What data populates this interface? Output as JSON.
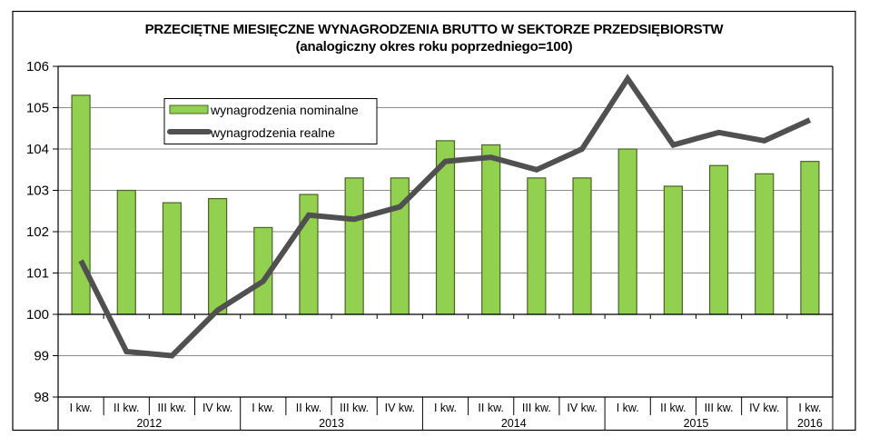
{
  "chart_data": {
    "type": "bar",
    "title": "PRZECIĘTNE MIESIĘCZNE WYNAGRODZENIA BRUTTO W SEKTORZE PRZEDSIĘBIORSTW",
    "subtitle": "(analogiczny okres  roku poprzedniego=100)",
    "xlabel": "",
    "ylabel": "",
    "ylim": [
      98,
      106
    ],
    "yticks": [
      98,
      99,
      100,
      101,
      102,
      103,
      104,
      105,
      106
    ],
    "bar_baseline": 100,
    "grid": true,
    "legend_position": "upper-left-inside",
    "categories": [
      "I kw.",
      "II kw.",
      "III kw.",
      "IV kw.",
      "I kw.",
      "II kw.",
      "III kw.",
      "IV kw.",
      "I kw.",
      "II kw.",
      "III kw.",
      "IV kw.",
      "I kw.",
      "II kw.",
      "III kw.",
      "IV kw.",
      "I kw."
    ],
    "year_groups": [
      {
        "label": "2012",
        "span": 4
      },
      {
        "label": "2013",
        "span": 4
      },
      {
        "label": "2014",
        "span": 4
      },
      {
        "label": "2015",
        "span": 4
      },
      {
        "label": "2016",
        "span": 1
      }
    ],
    "series": [
      {
        "name": "wynagrodzenia nominalne",
        "kind": "bar",
        "color": "#92d050",
        "stroke": "#4f6228",
        "values": [
          105.3,
          103.0,
          102.7,
          102.8,
          102.1,
          102.9,
          103.3,
          103.3,
          104.2,
          104.1,
          103.3,
          103.3,
          104.0,
          103.1,
          103.6,
          103.4,
          103.7
        ]
      },
      {
        "name": "wynagrodzenia realne",
        "kind": "line",
        "color": "#505050",
        "values": [
          101.3,
          99.1,
          99.0,
          100.1,
          100.8,
          102.4,
          102.3,
          102.6,
          103.7,
          103.8,
          103.5,
          104.0,
          105.7,
          104.1,
          104.4,
          104.2,
          104.7
        ]
      }
    ]
  }
}
